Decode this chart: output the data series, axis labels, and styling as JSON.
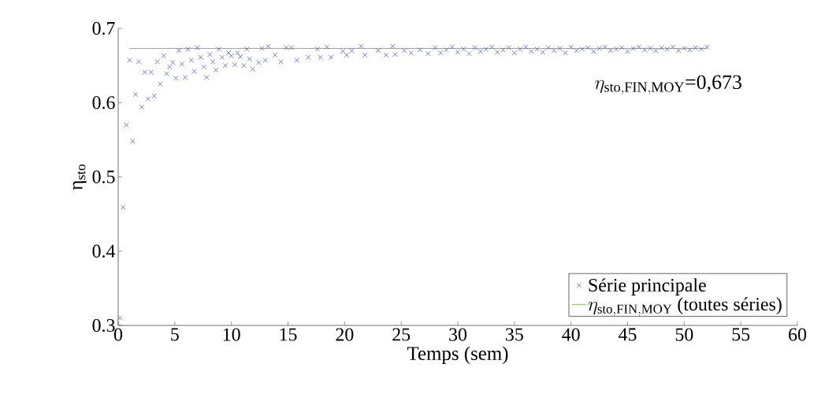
{
  "chart_data": {
    "type": "scatter",
    "xlabel": "Temps (sem)",
    "ylabel": "η$_{sto}$",
    "xlim": [
      0,
      60
    ],
    "ylim": [
      0.3,
      0.7
    ],
    "xticks": [
      0,
      5,
      10,
      15,
      20,
      25,
      30,
      35,
      40,
      45,
      50,
      55,
      60
    ],
    "yticks": [
      0.3,
      0.4,
      0.5,
      0.6,
      0.7
    ],
    "legend": "bottom right",
    "annotations": [
      "\\eta_{\\mathrm{sto,FIN,MOY}}\\hbox{=0,673}"
    ],
    "series": [
      {
        "name": "Série principale",
        "marker": "cross",
        "color": "#3b4cc0",
        "x": [
          0.16,
          0.44,
          0.72,
          1.0,
          1.27,
          1.53,
          1.81,
          2.09,
          2.34,
          2.64,
          2.9,
          3.18,
          3.46,
          3.71,
          4.01,
          4.27,
          4.55,
          4.82,
          5.1,
          5.35,
          5.63,
          5.92,
          6.17,
          6.46,
          6.72,
          7.0,
          7.29,
          7.56,
          7.82,
          8.1,
          8.36,
          8.63,
          8.9,
          9.18,
          9.46,
          9.74,
          9.99,
          10.3,
          10.54,
          10.8,
          11.1,
          11.36,
          11.6,
          11.88,
          12.4,
          12.7,
          12.99,
          13.26,
          13.85,
          14.38,
          14.84,
          15.3,
          15.78,
          16.8,
          17.6,
          17.86,
          18.44,
          18.8,
          19.83,
          20.18,
          20.64,
          21.45,
          21.8,
          22.96,
          23.66,
          24.24,
          24.47,
          25.28,
          25.87,
          26.67,
          27.37,
          28.0,
          28.5,
          29.0,
          29.5,
          30.0,
          30.5,
          31.0,
          31.5,
          32.0,
          32.5,
          33.0,
          33.5,
          34.0,
          34.5,
          35.0,
          35.5,
          36.0,
          36.5,
          37.0,
          37.5,
          38.0,
          38.5,
          39.0,
          39.5,
          40.0,
          40.5,
          41.0,
          41.5,
          42.0,
          42.5,
          43.0,
          43.5,
          44.0,
          44.5,
          45.0,
          45.5,
          46.0,
          46.5,
          47.0,
          47.5,
          48.0,
          48.5,
          49.0,
          49.5,
          50.0,
          50.5,
          51.0,
          51.5,
          52.0
        ],
        "values": [
          0.31,
          0.459,
          0.57,
          0.657,
          0.548,
          0.611,
          0.655,
          0.594,
          0.641,
          0.605,
          0.641,
          0.609,
          0.655,
          0.625,
          0.663,
          0.639,
          0.648,
          0.654,
          0.633,
          0.67,
          0.652,
          0.634,
          0.672,
          0.657,
          0.642,
          0.674,
          0.661,
          0.648,
          0.634,
          0.665,
          0.655,
          0.644,
          0.672,
          0.661,
          0.65,
          0.667,
          0.663,
          0.651,
          0.667,
          0.662,
          0.65,
          0.672,
          0.659,
          0.645,
          0.654,
          0.673,
          0.657,
          0.676,
          0.664,
          0.655,
          0.674,
          0.674,
          0.657,
          0.661,
          0.672,
          0.661,
          0.675,
          0.661,
          0.669,
          0.664,
          0.67,
          0.676,
          0.664,
          0.67,
          0.664,
          0.676,
          0.665,
          0.67,
          0.667,
          0.671,
          0.666,
          0.674,
          0.667,
          0.671,
          0.675,
          0.668,
          0.672,
          0.666,
          0.674,
          0.669,
          0.672,
          0.675,
          0.668,
          0.671,
          0.674,
          0.667,
          0.672,
          0.675,
          0.669,
          0.672,
          0.668,
          0.674,
          0.67,
          0.673,
          0.667,
          0.675,
          0.67,
          0.672,
          0.674,
          0.669,
          0.673,
          0.675,
          0.67,
          0.672,
          0.674,
          0.669,
          0.673,
          0.675,
          0.671,
          0.673,
          0.67,
          0.674,
          0.672,
          0.675,
          0.67,
          0.673,
          0.671,
          0.674,
          0.672,
          0.675
        ]
      },
      {
        "name": "\\eta_{\\mathrm{sto,FIN,MOY}}\\hbox{ (toutes séries)}",
        "type": "line",
        "marker": "none",
        "color": "#7cbf5a",
        "x": [
          1.0,
          52.0
        ],
        "values": [
          0.673,
          0.673
        ]
      }
    ]
  }
}
